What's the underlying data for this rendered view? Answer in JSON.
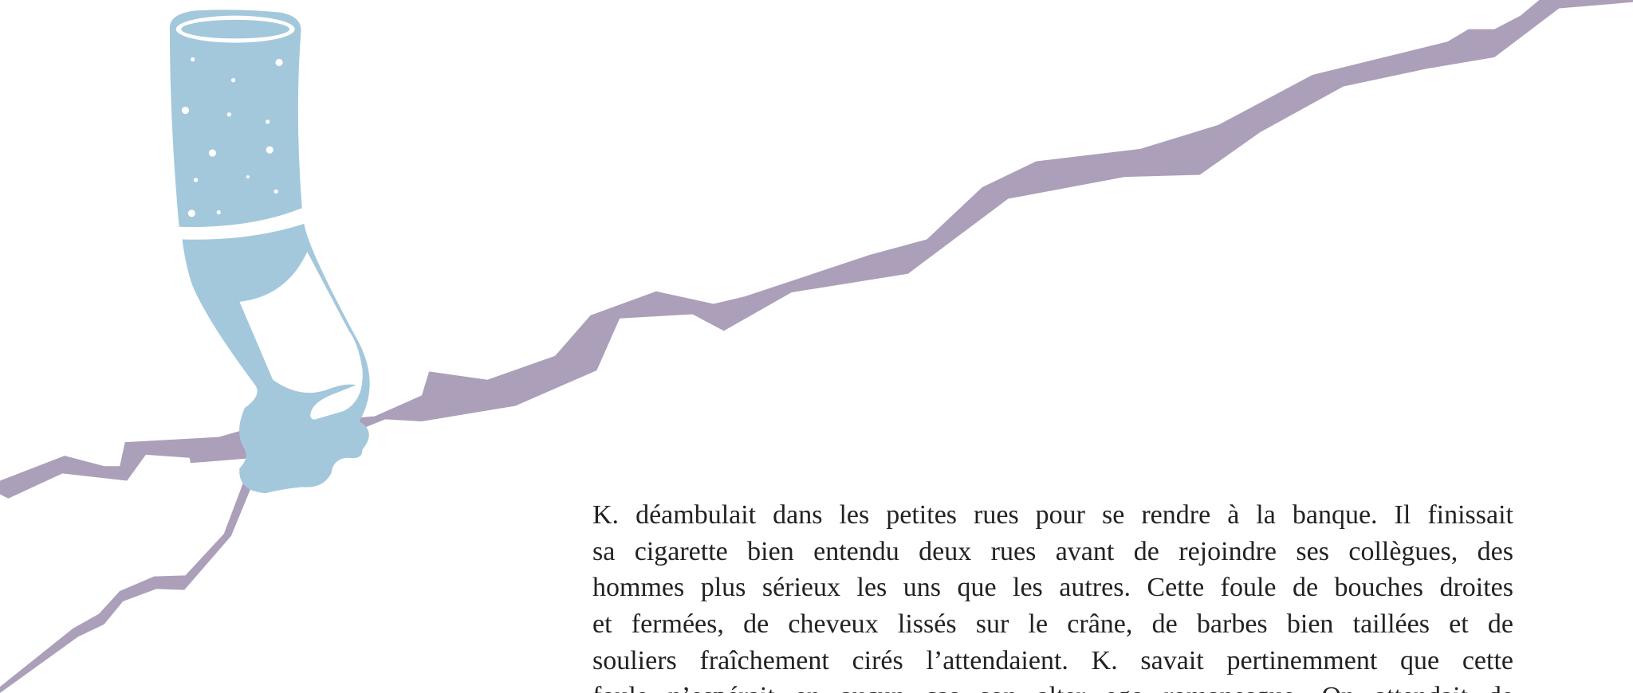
{
  "paragraph": {
    "lines": [
      "K. déambulait dans les petites rues pour se rendre à la banque. Il finissait",
      "sa cigarette bien entendu deux rues avant de rejoindre ses collègues, des",
      "hommes plus sérieux les uns que les autres. Cette foule de bouches droites",
      "et fermées, de cheveux lissés sur le crâne, de barbes bien taillées et de",
      "souliers fraîchement cirés l’attendaient. K. savait pertinemment que cette",
      "foule n’espérait en aucun cas son alter ego romanesque. On attendait de"
    ]
  }
}
